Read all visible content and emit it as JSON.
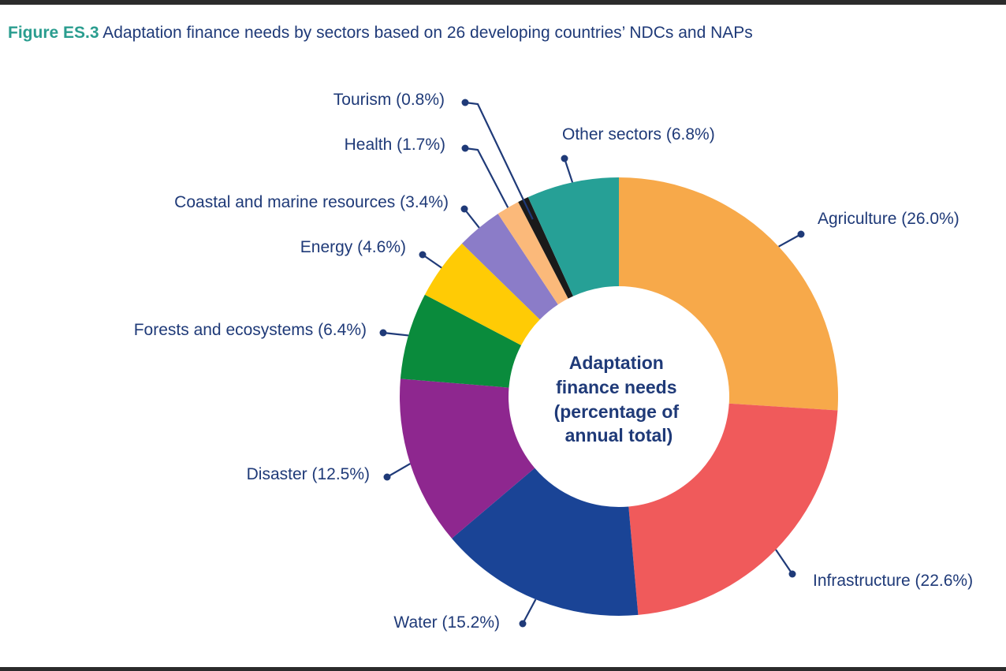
{
  "header": {
    "figure_label": "Figure ES.3",
    "title": "Adaptation finance needs by sectors based on 26 developing countries’ NDCs and NAPs"
  },
  "chart_data": {
    "type": "pie",
    "subtype": "donut",
    "title": "Figure ES.3 Adaptation finance needs by sectors based on 26 developing countries’ NDCs and NAPs",
    "center_label": [
      "Adaptation",
      "finance needs",
      "(percentage of",
      "annual total)"
    ],
    "unit": "%",
    "slices": [
      {
        "name": "Agriculture",
        "value": 26.0,
        "label": "Agriculture (26.0%)",
        "color": "#F7A94A"
      },
      {
        "name": "Infrastructure",
        "value": 22.6,
        "label": "Infrastructure (22.6%)",
        "color": "#F05A5B"
      },
      {
        "name": "Water",
        "value": 15.2,
        "label": "Water (15.2%)",
        "color": "#1A4496"
      },
      {
        "name": "Disaster",
        "value": 12.5,
        "label": "Disaster (12.5%)",
        "color": "#8E278F"
      },
      {
        "name": "Forests and ecosystems",
        "value": 6.4,
        "label": "Forests and ecosystems (6.4%)",
        "color": "#0A8B3C"
      },
      {
        "name": "Energy",
        "value": 4.6,
        "label": "Energy (4.6%)",
        "color": "#FFCB05"
      },
      {
        "name": "Coastal and marine resources",
        "value": 3.4,
        "label": "Coastal and marine resources (3.4%)",
        "color": "#8B7CC8"
      },
      {
        "name": "Health",
        "value": 1.7,
        "label": "Health (1.7%)",
        "color": "#FBB97A"
      },
      {
        "name": "Tourism",
        "value": 0.8,
        "label": "Tourism (0.8%)",
        "color": "#1A1A1A"
      },
      {
        "name": "Other sectors",
        "value": 6.8,
        "label": "Other sectors (6.8%)",
        "color": "#26A096"
      }
    ],
    "leader_color": "#1f3a78"
  }
}
